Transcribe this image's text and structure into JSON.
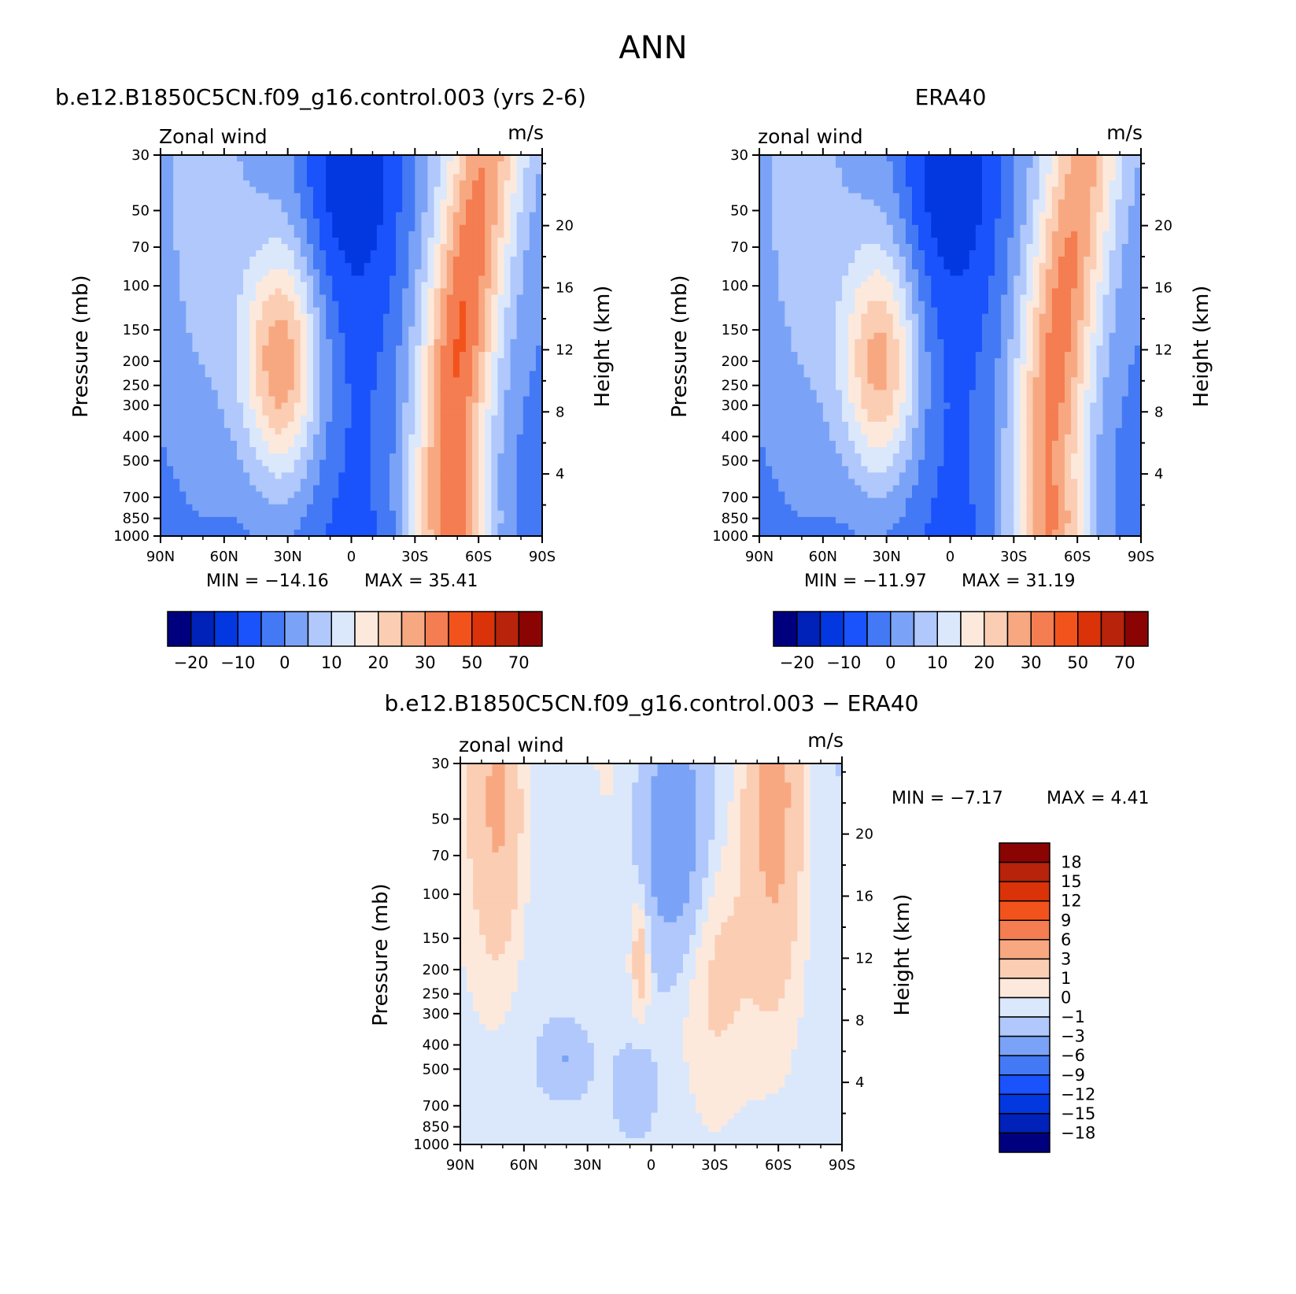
{
  "page_title": "ANN",
  "colors": {
    "abs_levels": [
      "#00007f",
      "#0022b8",
      "#0338e0",
      "#1a52fb",
      "#4479f5",
      "#7aa3f7",
      "#b0c8fb",
      "#dbe8fc",
      "#fde9dc",
      "#fbcdb3",
      "#f8a881",
      "#f47d51",
      "#f2531d",
      "#da3309",
      "#b7230b",
      "#8a0404"
    ],
    "diff_levels": [
      "#00007f",
      "#0022b8",
      "#0338e0",
      "#1a52fb",
      "#4479f5",
      "#7aa3f7",
      "#b0c8fb",
      "#dbe8fc",
      "#fde9dc",
      "#fbcdb3",
      "#f8a881",
      "#f47d51",
      "#f2531d",
      "#da3309",
      "#b7230b",
      "#8a0404"
    ]
  },
  "chart_data": [
    {
      "type": "heatmap",
      "title": "b.e12.B1850C5CN.f09_g16.control.003 (yrs 2-6)",
      "left_label": "Zonal wind",
      "units": "m/s",
      "ylabel": "Pressure (mb)",
      "ylabel_right": "Height (km)",
      "x_ticks": [
        "90N",
        "60N",
        "30N",
        "0",
        "30S",
        "60S",
        "90S"
      ],
      "y_ticks": [
        30,
        50,
        70,
        100,
        150,
        200,
        250,
        300,
        400,
        500,
        700,
        850,
        1000
      ],
      "y_right_ticks": [
        20,
        16,
        12,
        8,
        4
      ],
      "min_text": "MIN = −14.16",
      "max_text": "MAX = 35.41",
      "colorbar_ticks": [
        "−20",
        "−10",
        "0",
        "10",
        "20",
        "30",
        "50",
        "70"
      ],
      "ylim": [
        1000,
        30
      ],
      "xlim": [
        90,
        -90
      ],
      "jets": [
        {
          "lat": 33,
          "p": 200,
          "speed": 30
        },
        {
          "lat": -44,
          "p": 200,
          "speed": 35
        },
        {
          "lat": -58,
          "p": 30,
          "speed": 35
        }
      ],
      "min_value": -14.16,
      "max_value": 35.41
    },
    {
      "type": "heatmap",
      "title": "ERA40",
      "left_label": "zonal wind",
      "units": "m/s",
      "ylabel": "Pressure (mb)",
      "ylabel_right": "Height (km)",
      "x_ticks": [
        "90N",
        "60N",
        "30N",
        "0",
        "30S",
        "60S",
        "90S"
      ],
      "y_ticks": [
        30,
        50,
        70,
        100,
        150,
        200,
        250,
        300,
        400,
        500,
        700,
        850,
        1000
      ],
      "y_right_ticks": [
        20,
        16,
        12,
        8,
        4
      ],
      "min_text": "MIN = −11.97",
      "max_text": "MAX = 31.19",
      "colorbar_ticks": [
        "−20",
        "−10",
        "0",
        "10",
        "20",
        "30",
        "50",
        "70"
      ],
      "ylim": [
        1000,
        30
      ],
      "xlim": [
        90,
        -90
      ],
      "jets": [
        {
          "lat": 33,
          "p": 200,
          "speed": 30
        },
        {
          "lat": -42,
          "p": 200,
          "speed": 31
        },
        {
          "lat": -60,
          "p": 30,
          "speed": 30
        }
      ],
      "min_value": -11.97,
      "max_value": 31.19
    },
    {
      "type": "heatmap",
      "title": "b.e12.B1850C5CN.f09_g16.control.003 − ERA40",
      "left_label": "zonal wind",
      "units": "m/s",
      "ylabel": "Pressure (mb)",
      "ylabel_right": "Height (km)",
      "x_ticks": [
        "90N",
        "60N",
        "30N",
        "0",
        "30S",
        "60S",
        "90S"
      ],
      "y_ticks": [
        30,
        50,
        70,
        100,
        150,
        200,
        250,
        300,
        400,
        500,
        700,
        850,
        1000
      ],
      "y_right_ticks": [
        20,
        16,
        12,
        8,
        4
      ],
      "min_text": "MIN = −7.17",
      "max_text": "MAX = 4.41",
      "colorbar_ticks": [
        "18",
        "15",
        "12",
        "9",
        "6",
        "3",
        "1",
        "0",
        "−1",
        "−3",
        "−6",
        "−9",
        "−12",
        "−15",
        "−18"
      ],
      "ylim": [
        1000,
        30
      ],
      "xlim": [
        90,
        -90
      ],
      "min_value": -7.17,
      "max_value": 4.41
    }
  ]
}
